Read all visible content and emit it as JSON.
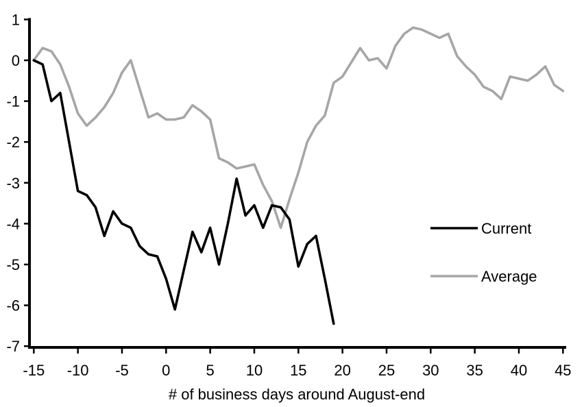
{
  "chart_data": {
    "type": "line",
    "title": "",
    "xlabel": "# of business days around August-end",
    "ylabel": "",
    "xlim": [
      -15,
      45
    ],
    "ylim": [
      -7,
      1
    ],
    "xticks": [
      -15,
      -10,
      -5,
      0,
      5,
      10,
      15,
      20,
      25,
      30,
      35,
      40,
      45
    ],
    "yticks": [
      1,
      0,
      -1,
      -2,
      -3,
      -4,
      -5,
      -6,
      -7
    ],
    "grid": false,
    "axis_color": "#000000",
    "legend_position": "middle-right",
    "series": [
      {
        "name": "Current",
        "color": "#000000",
        "x": [
          -15,
          -14,
          -13,
          -12,
          -11,
          -10,
          -9,
          -8,
          -7,
          -6,
          -5,
          -4,
          -3,
          -2,
          -1,
          0,
          1,
          2,
          3,
          4,
          5,
          6,
          7,
          8,
          9,
          10,
          11,
          12,
          13,
          14,
          15,
          16,
          17,
          18,
          19
        ],
        "values": [
          0,
          -0.1,
          -1.0,
          -0.8,
          -2.0,
          -3.2,
          -3.3,
          -3.6,
          -4.3,
          -3.7,
          -4.0,
          -4.1,
          -4.55,
          -4.75,
          -4.8,
          -5.35,
          -6.1,
          -5.15,
          -4.2,
          -4.7,
          -4.1,
          -5.0,
          -4.0,
          -2.9,
          -3.8,
          -3.55,
          -4.1,
          -3.55,
          -3.6,
          -3.9,
          -5.05,
          -4.5,
          -4.3,
          -5.35,
          -6.45
        ]
      },
      {
        "name": "Average",
        "color": "#A6A6A6",
        "x": [
          -15,
          -14,
          -13,
          -12,
          -11,
          -10,
          -9,
          -8,
          -7,
          -6,
          -5,
          -4,
          -3,
          -2,
          -1,
          0,
          1,
          2,
          3,
          4,
          5,
          6,
          7,
          8,
          9,
          10,
          11,
          12,
          13,
          14,
          15,
          16,
          17,
          18,
          19,
          20,
          21,
          22,
          23,
          24,
          25,
          26,
          27,
          28,
          29,
          30,
          31,
          32,
          33,
          34,
          35,
          36,
          37,
          38,
          39,
          40,
          41,
          42,
          43,
          44,
          45
        ],
        "values": [
          0,
          0.3,
          0.22,
          -0.1,
          -0.65,
          -1.3,
          -1.6,
          -1.4,
          -1.15,
          -0.8,
          -0.3,
          0.0,
          -0.7,
          -1.4,
          -1.3,
          -1.45,
          -1.45,
          -1.4,
          -1.1,
          -1.25,
          -1.45,
          -2.4,
          -2.5,
          -2.65,
          -2.6,
          -2.55,
          -3.05,
          -3.45,
          -4.1,
          -3.4,
          -2.75,
          -2.0,
          -1.6,
          -1.35,
          -0.55,
          -0.4,
          -0.05,
          0.3,
          0.0,
          0.05,
          -0.2,
          0.35,
          0.65,
          0.8,
          0.75,
          0.65,
          0.55,
          0.65,
          0.1,
          -0.15,
          -0.35,
          -0.65,
          -0.75,
          -0.95,
          -0.4,
          -0.45,
          -0.5,
          -0.35,
          -0.15,
          -0.6,
          -0.75
        ]
      }
    ]
  },
  "legend": {
    "items": [
      {
        "label": "Current",
        "color": "#000000"
      },
      {
        "label": "Average",
        "color": "#A6A6A6"
      }
    ]
  }
}
